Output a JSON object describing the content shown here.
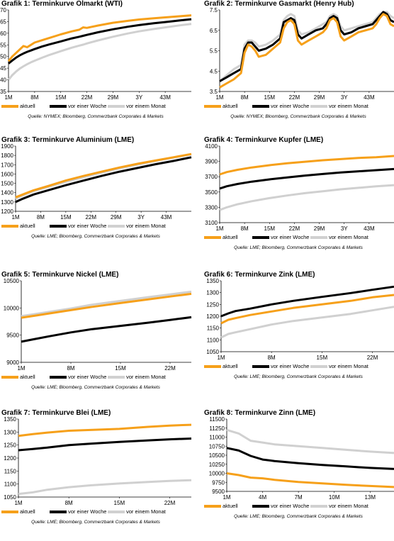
{
  "legend_labels": [
    "aktuell",
    "vor einer Woche",
    "vor einem Monat"
  ],
  "colors": {
    "aktuell": "#f6a01a",
    "vor_einer_woche": "#000000",
    "vor_einem_monat": "#d0d0d0"
  },
  "charts": [
    {
      "prefix": "Grafik 1:",
      "name": "Terminkurve Ölmarkt (WTI)",
      "source": "Quelle: NYMEX; Bloomberg, Commerzbank Corporates & Markets"
    },
    {
      "prefix": "Grafik 2:",
      "name": "Terminkurve Gasmarkt (Henry Hub)",
      "source": "Quelle: NYMEX; Bloomberg, Commerzbank Corporates & Markets"
    },
    {
      "prefix": "Grafik 3:",
      "name": "Terminkurve Aluminium (LME)",
      "source": "Quelle: LME; Bloomberg, Commerzbank Corporates & Markets"
    },
    {
      "prefix": "Grafik 4:",
      "name": "Terminkurve Kupfer (LME)",
      "source": "Quelle: LME; Bloomberg, Commerzbank Corporates & Markets"
    },
    {
      "prefix": "Grafik 5:",
      "name": "Terminkurve Nickel (LME)",
      "source": "Quelle: LME; Bloomberg, Commerzbank Corporates & Markets"
    },
    {
      "prefix": "Grafik 6:",
      "name": "Terminkurve Zink (LME)",
      "source": "Quelle: LME; Bloomberg, Commerzbank Corporates & Markets"
    },
    {
      "prefix": "Grafik 7:",
      "name": "Terminkurve Blei (LME)",
      "source": "Quelle: LME; Bloomberg, Commerzbank Corporates & Markets"
    },
    {
      "prefix": "Grafik 8:",
      "name": "Terminkurve Zinn (LME)",
      "source": "Quelle: LME; Bloomberg, Commerzbank Corporates & Markets"
    }
  ],
  "chart_data": [
    {
      "type": "line",
      "title": "GRAFIK 1: Terminkurve Ölmarkt (WTI)",
      "x_ticks": [
        "1M",
        "8M",
        "15M",
        "22M",
        "29M",
        "3Y",
        "43M"
      ],
      "x": [
        1,
        2,
        3,
        4,
        5,
        6,
        7,
        8,
        10,
        12,
        15,
        18,
        20,
        21,
        22,
        25,
        29,
        33,
        36,
        40,
        43,
        47,
        50
      ],
      "ylim": [
        35,
        70
      ],
      "yticks": [
        35,
        40,
        45,
        50,
        55,
        60,
        65,
        70
      ],
      "series": [
        {
          "name": "aktuell",
          "values": [
            48,
            50,
            51.5,
            53,
            54.5,
            54,
            55,
            56,
            57,
            58,
            59.5,
            60.8,
            61.5,
            62.5,
            62.3,
            63.3,
            64.5,
            65.3,
            65.9,
            66.4,
            66.8,
            67.3,
            67.7
          ]
        },
        {
          "name": "vor einer Woche",
          "values": [
            47,
            48.3,
            49.5,
            50.5,
            51.3,
            52,
            52.6,
            53.2,
            54.3,
            55.2,
            56.5,
            57.8,
            58.5,
            58.9,
            59.3,
            60.4,
            61.7,
            62.8,
            63.5,
            64.3,
            64.8,
            65.5,
            66
          ]
        },
        {
          "name": "vor einem Monat",
          "values": [
            40,
            42,
            43.5,
            44.8,
            45.8,
            46.7,
            47.5,
            48.2,
            49.5,
            50.7,
            52.3,
            53.8,
            54.7,
            55.1,
            55.6,
            56.9,
            58.5,
            59.9,
            60.8,
            61.8,
            62.5,
            63.4,
            64
          ]
        }
      ]
    },
    {
      "type": "line",
      "title": "GRAFIK 2: Terminkurve Gasmarkt (Henry Hub)",
      "x_ticks": [
        "1M",
        "8M",
        "15M",
        "22M",
        "29M",
        "3Y",
        "43M"
      ],
      "x": [
        1,
        3,
        5,
        7,
        8,
        9,
        10,
        11,
        12,
        14,
        16,
        18,
        19,
        20,
        21,
        22,
        23,
        24,
        26,
        28,
        30,
        31,
        32,
        33,
        34,
        35,
        36,
        38,
        40,
        42,
        44,
        45,
        46,
        47,
        48,
        49,
        50
      ],
      "ylim": [
        3.5,
        7.5
      ],
      "yticks": [
        3.5,
        4.5,
        5.5,
        6.5,
        7.5
      ],
      "series": [
        {
          "name": "aktuell",
          "values": [
            3.7,
            3.9,
            4.1,
            4.4,
            5.4,
            5.8,
            5.7,
            5.5,
            5.2,
            5.3,
            5.6,
            5.9,
            6.6,
            6.9,
            7.0,
            6.8,
            6.0,
            5.8,
            6.0,
            6.2,
            6.4,
            6.6,
            7.0,
            7.1,
            6.9,
            6.2,
            6.0,
            6.2,
            6.4,
            6.5,
            6.6,
            6.8,
            7.1,
            7.3,
            7.2,
            6.8,
            6.7
          ]
        },
        {
          "name": "vor einer Woche",
          "values": [
            4.0,
            4.2,
            4.4,
            4.6,
            5.6,
            5.9,
            5.9,
            5.7,
            5.5,
            5.6,
            5.8,
            6.1,
            6.9,
            7.0,
            7.1,
            7.0,
            6.3,
            6.1,
            6.3,
            6.5,
            6.6,
            6.8,
            7.1,
            7.2,
            7.1,
            6.5,
            6.3,
            6.4,
            6.6,
            6.7,
            6.8,
            7.0,
            7.2,
            7.4,
            7.3,
            7.0,
            6.9
          ]
        },
        {
          "name": "vor einem Monat",
          "values": [
            4.0,
            4.3,
            4.6,
            4.8,
            5.8,
            6.0,
            6.0,
            5.9,
            5.7,
            5.8,
            6.0,
            6.3,
            7.0,
            7.2,
            7.3,
            7.2,
            6.5,
            6.3,
            6.4,
            6.6,
            6.8,
            6.9,
            7.2,
            7.3,
            7.2,
            6.7,
            6.5,
            6.6,
            6.7,
            6.8,
            6.9,
            7.1,
            7.3,
            7.4,
            7.4,
            7.2,
            7.1
          ]
        }
      ]
    },
    {
      "type": "line",
      "title": "GRAFIK 3: Terminkurve Aluminium (LME)",
      "x_ticks": [
        "1M",
        "8M",
        "15M",
        "22M",
        "29M",
        "3Y",
        "43M"
      ],
      "x": [
        1,
        3,
        6,
        10,
        15,
        20,
        25,
        30,
        35,
        40,
        45,
        50
      ],
      "ylim": [
        1200,
        1900
      ],
      "yticks": [
        1200,
        1300,
        1400,
        1500,
        1600,
        1700,
        1800,
        1900
      ],
      "series": [
        {
          "name": "aktuell",
          "values": [
            1350,
            1380,
            1425,
            1470,
            1530,
            1580,
            1625,
            1670,
            1710,
            1745,
            1780,
            1815
          ]
        },
        {
          "name": "vor einer Woche",
          "values": [
            1300,
            1335,
            1380,
            1425,
            1480,
            1530,
            1580,
            1625,
            1665,
            1705,
            1740,
            1780
          ]
        },
        {
          "name": "vor einem Monat",
          "values": [
            1335,
            1370,
            1415,
            1460,
            1515,
            1565,
            1615,
            1660,
            1700,
            1740,
            1775,
            1810
          ]
        }
      ]
    },
    {
      "type": "line",
      "title": "GRAFIK 4: Terminkurve Kupfer (LME)",
      "x_ticks": [
        "1M",
        "8M",
        "15M",
        "22M",
        "29M",
        "3Y",
        "43M"
      ],
      "x": [
        1,
        3,
        6,
        10,
        15,
        20,
        25,
        30,
        35,
        40,
        45,
        50
      ],
      "ylim": [
        3100,
        4100
      ],
      "yticks": [
        3100,
        3300,
        3500,
        3700,
        3900,
        4100
      ],
      "series": [
        {
          "name": "aktuell",
          "values": [
            3730,
            3760,
            3790,
            3820,
            3850,
            3875,
            3895,
            3915,
            3930,
            3945,
            3955,
            3970
          ]
        },
        {
          "name": "vor einer Woche",
          "values": [
            3545,
            3575,
            3605,
            3635,
            3665,
            3690,
            3715,
            3735,
            3755,
            3770,
            3785,
            3800
          ]
        },
        {
          "name": "vor einem Monat",
          "values": [
            3265,
            3300,
            3340,
            3380,
            3420,
            3455,
            3485,
            3510,
            3535,
            3555,
            3575,
            3590
          ]
        }
      ]
    },
    {
      "type": "line",
      "title": "GRAFIK 5: Terminkurve Nickel (LME)",
      "x_ticks": [
        "1M",
        "8M",
        "15M",
        "22M"
      ],
      "x": [
        1,
        3,
        5,
        8,
        11,
        15,
        19,
        22,
        25
      ],
      "ylim": [
        9000,
        10500
      ],
      "yticks": [
        9000,
        9500,
        10000,
        10500
      ],
      "series": [
        {
          "name": "aktuell",
          "values": [
            9820,
            9860,
            9900,
            9960,
            10020,
            10090,
            10160,
            10210,
            10260
          ]
        },
        {
          "name": "vor einer Woche",
          "values": [
            9380,
            9430,
            9480,
            9550,
            9610,
            9670,
            9730,
            9780,
            9830
          ]
        },
        {
          "name": "vor einem Monat",
          "values": [
            9850,
            9890,
            9930,
            9990,
            10060,
            10130,
            10200,
            10250,
            10300
          ]
        }
      ]
    },
    {
      "type": "line",
      "title": "GRAFIK 6: Terminkurve Zink (LME)",
      "x_ticks": [
        "1M",
        "8M",
        "15M",
        "22M"
      ],
      "x": [
        1,
        2,
        3,
        5,
        8,
        11,
        15,
        19,
        22,
        25
      ],
      "ylim": [
        1050,
        1350
      ],
      "yticks": [
        1050,
        1100,
        1150,
        1200,
        1250,
        1300,
        1350
      ],
      "series": [
        {
          "name": "aktuell",
          "values": [
            1170,
            1185,
            1192,
            1205,
            1220,
            1235,
            1250,
            1265,
            1280,
            1290
          ]
        },
        {
          "name": "vor einer Woche",
          "values": [
            1200,
            1212,
            1222,
            1232,
            1250,
            1265,
            1282,
            1298,
            1312,
            1325
          ]
        },
        {
          "name": "vor einem Monat",
          "values": [
            1110,
            1125,
            1132,
            1145,
            1165,
            1180,
            1195,
            1210,
            1225,
            1240
          ]
        }
      ]
    },
    {
      "type": "line",
      "title": "GRAFIK 7: Terminkurve Blei (LME)",
      "x_ticks": [
        "1M",
        "8M",
        "15M",
        "22M"
      ],
      "x": [
        1,
        3,
        5,
        8,
        11,
        15,
        19,
        22,
        25
      ],
      "ylim": [
        1050,
        1350
      ],
      "yticks": [
        1050,
        1100,
        1150,
        1200,
        1250,
        1300,
        1350
      ],
      "series": [
        {
          "name": "aktuell",
          "values": [
            1285,
            1292,
            1298,
            1305,
            1308,
            1312,
            1320,
            1325,
            1328
          ]
        },
        {
          "name": "vor einer Woche",
          "values": [
            1230,
            1235,
            1240,
            1250,
            1255,
            1262,
            1268,
            1272,
            1275
          ]
        },
        {
          "name": "vor einem Monat",
          "values": [
            1062,
            1068,
            1078,
            1088,
            1095,
            1102,
            1108,
            1112,
            1115
          ]
        }
      ]
    },
    {
      "type": "line",
      "title": "GRAFIK 8: Terminkurve Zinn (LME)",
      "x_ticks": [
        "1M",
        "4M",
        "7M",
        "10M",
        "13M"
      ],
      "x": [
        1,
        2,
        3,
        4,
        5,
        7,
        9,
        11,
        13,
        15
      ],
      "ylim": [
        9500,
        11500
      ],
      "yticks": [
        9500,
        9750,
        10000,
        10250,
        10500,
        10750,
        11000,
        11250,
        11500
      ],
      "series": [
        {
          "name": "aktuell",
          "values": [
            10000,
            9950,
            9880,
            9860,
            9820,
            9760,
            9720,
            9680,
            9650,
            9620
          ]
        },
        {
          "name": "vor einer Woche",
          "values": [
            10700,
            10630,
            10480,
            10380,
            10340,
            10280,
            10230,
            10190,
            10150,
            10120
          ]
        },
        {
          "name": "vor einem Monat",
          "values": [
            11200,
            11100,
            10900,
            10850,
            10800,
            10750,
            10700,
            10650,
            10600,
            10560
          ]
        }
      ]
    }
  ]
}
